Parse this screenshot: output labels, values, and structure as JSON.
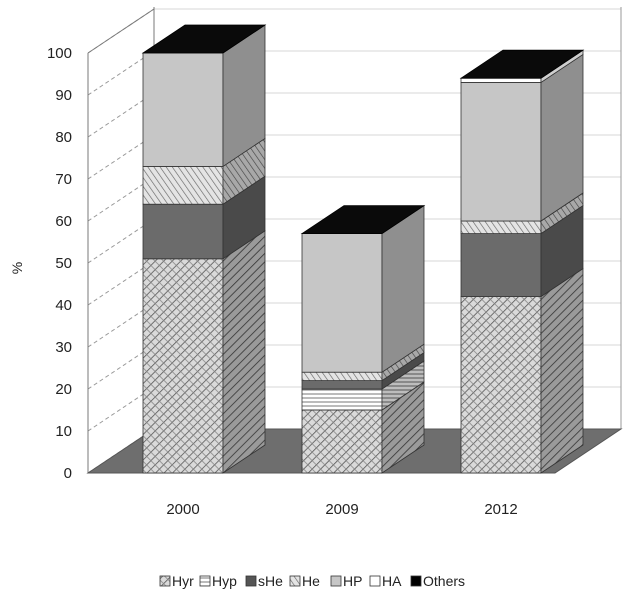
{
  "chart_data": {
    "type": "bar",
    "stacked": true,
    "three_d": true,
    "categories": [
      "2000",
      "2009",
      "2012"
    ],
    "ylabel": "%",
    "ylim": [
      0,
      100
    ],
    "yticks": [
      "0",
      "10",
      "20",
      "30",
      "40",
      "50",
      "60",
      "70",
      "80",
      "90",
      "100"
    ],
    "grid": true,
    "legend_position": "bottom",
    "series": [
      {
        "name": "Hyr",
        "values": [
          51,
          15,
          42
        ],
        "pattern": "crosshatch-dark",
        "color": "#d8d8d8"
      },
      {
        "name": "Hyp",
        "values": [
          0,
          5,
          0
        ],
        "pattern": "horizontal-lines",
        "color": "#ffffff"
      },
      {
        "name": "sHe",
        "values": [
          13,
          2,
          15
        ],
        "pattern": "solid",
        "color": "#6b6b6b"
      },
      {
        "name": "He",
        "values": [
          9,
          2,
          3
        ],
        "pattern": "diagonal",
        "color": "#dcdcdc"
      },
      {
        "name": "HP",
        "values": [
          27,
          33,
          33
        ],
        "pattern": "solid-light",
        "color": "#c6c6c6"
      },
      {
        "name": "HA",
        "values": [
          0,
          0,
          1
        ],
        "pattern": "blank",
        "color": "#ffffff"
      },
      {
        "name": "Others",
        "values": [
          0,
          0,
          0
        ],
        "pattern": "solid-black",
        "color": "#000000"
      }
    ]
  }
}
